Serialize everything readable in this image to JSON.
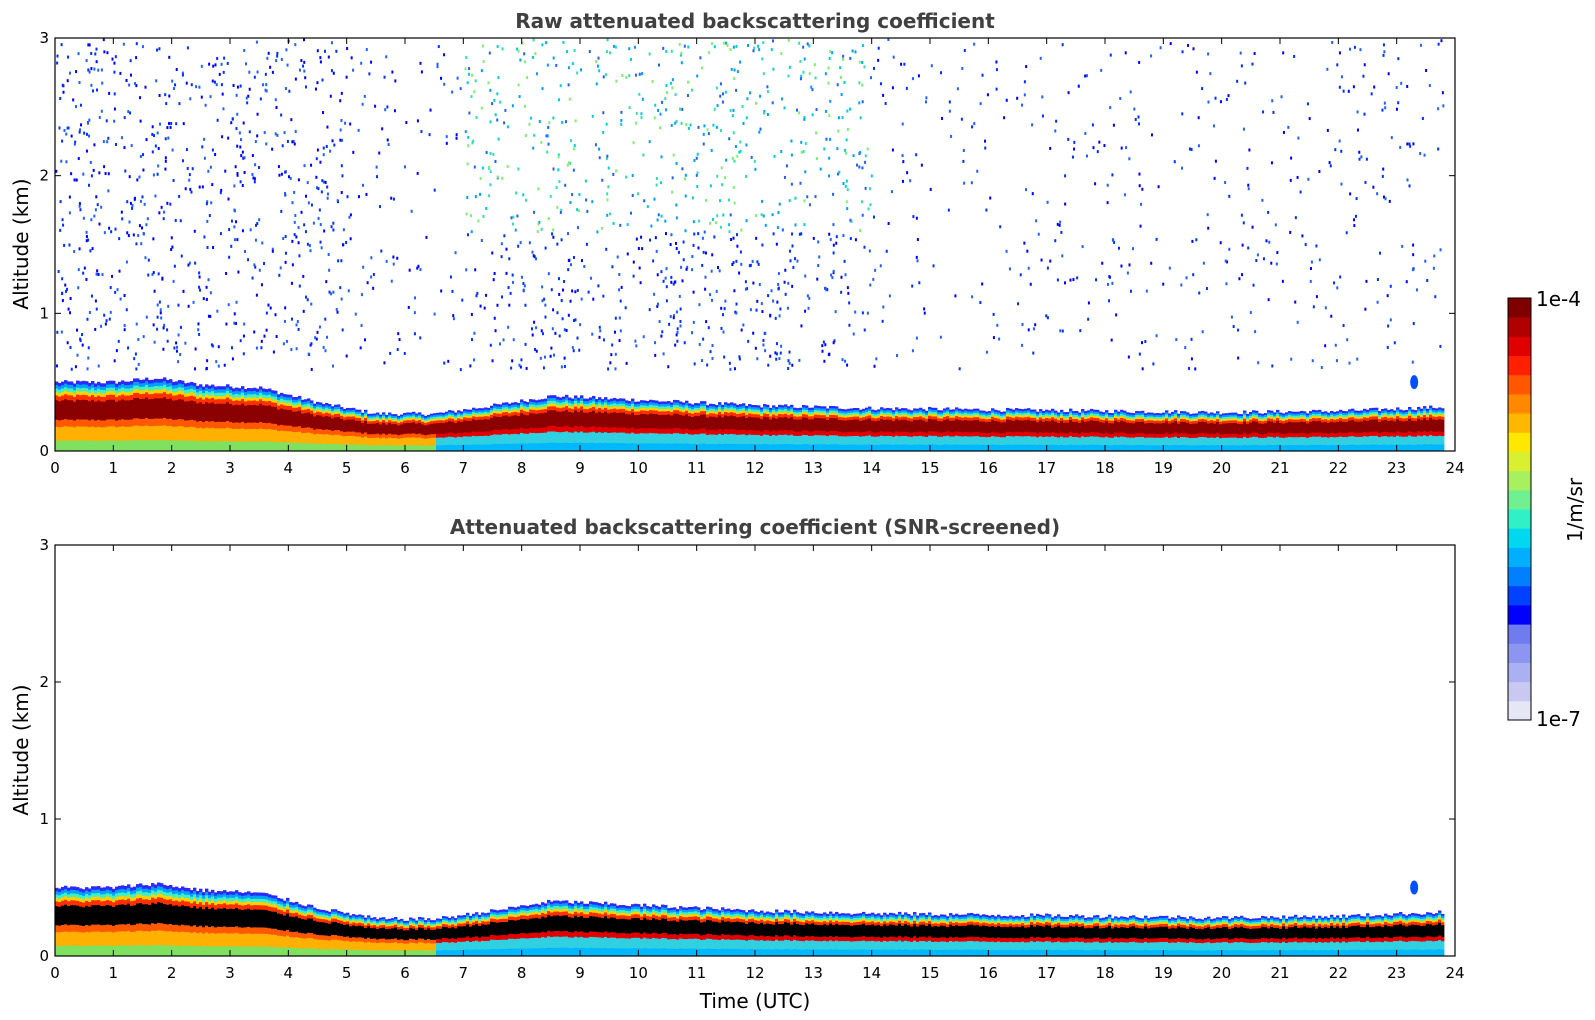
{
  "chart_data": [
    {
      "type": "heatmap",
      "title": "Raw attenuated backscattering coefficient",
      "xlabel": "",
      "ylabel": "Altitude (km)",
      "xlim": [
        0,
        24
      ],
      "ylim": [
        0,
        3
      ],
      "x_ticks": [
        "0",
        "1",
        "2",
        "3",
        "4",
        "5",
        "6",
        "7",
        "8",
        "9",
        "10",
        "11",
        "12",
        "13",
        "14",
        "15",
        "16",
        "17",
        "18",
        "19",
        "20",
        "21",
        "22",
        "23",
        "24"
      ],
      "y_ticks": [
        "0",
        "1",
        "2",
        "3"
      ],
      "data_end_hour": 23.8,
      "layer_top_km": {
        "hours": [
          0,
          1,
          1.7,
          2.5,
          3.5,
          4.5,
          5.5,
          6.5,
          7.5,
          8.5,
          9.5,
          10.5,
          12,
          14,
          16,
          18,
          20,
          22,
          23.8
        ],
        "values": [
          0.5,
          0.5,
          0.53,
          0.48,
          0.46,
          0.35,
          0.27,
          0.27,
          0.33,
          0.4,
          0.38,
          0.36,
          0.33,
          0.31,
          0.3,
          0.29,
          0.28,
          0.29,
          0.32
        ]
      },
      "noise_level": "high",
      "noise_dense_hours": [
        [
          0,
          5
        ],
        [
          7,
          14
        ]
      ],
      "small_feature": {
        "hour": 23.3,
        "altitude_km": 0.5
      }
    },
    {
      "type": "heatmap",
      "title": "Attenuated backscattering coefficient (SNR-screened)",
      "xlabel": "Time (UTC)",
      "ylabel": "Altitude (km)",
      "xlim": [
        0,
        24
      ],
      "ylim": [
        0,
        3
      ],
      "x_ticks": [
        "0",
        "1",
        "2",
        "3",
        "4",
        "5",
        "6",
        "7",
        "8",
        "9",
        "10",
        "11",
        "12",
        "13",
        "14",
        "15",
        "16",
        "17",
        "18",
        "19",
        "20",
        "21",
        "22",
        "23",
        "24"
      ],
      "y_ticks": [
        "0",
        "1",
        "2",
        "3"
      ],
      "data_end_hour": 23.8,
      "layer_top_km": {
        "hours": [
          0,
          1,
          1.7,
          2.5,
          3.5,
          4.5,
          5.5,
          6.5,
          7.5,
          8.5,
          9.5,
          10.5,
          12,
          14,
          16,
          18,
          20,
          22,
          23.8
        ],
        "values": [
          0.5,
          0.5,
          0.53,
          0.48,
          0.46,
          0.35,
          0.27,
          0.27,
          0.33,
          0.4,
          0.38,
          0.36,
          0.33,
          0.31,
          0.3,
          0.29,
          0.28,
          0.29,
          0.32
        ]
      },
      "noise_level": "none",
      "small_feature": {
        "hour": 23.3,
        "altitude_km": 0.5
      }
    }
  ],
  "colorbar": {
    "label": "1/m/sr",
    "max_label": "1e-4",
    "min_label": "1e-7",
    "colors": [
      "#e6e6f5",
      "#c8c8f0",
      "#aab0f0",
      "#8c96f0",
      "#6e7cf0",
      "#0000ff",
      "#0040ff",
      "#0080ff",
      "#00b0ff",
      "#00d8f0",
      "#30f0c8",
      "#70f090",
      "#a8f060",
      "#d8f030",
      "#ffe800",
      "#ffb800",
      "#ff8800",
      "#ff5800",
      "#ff2000",
      "#e00000",
      "#b00000",
      "#800000"
    ]
  }
}
